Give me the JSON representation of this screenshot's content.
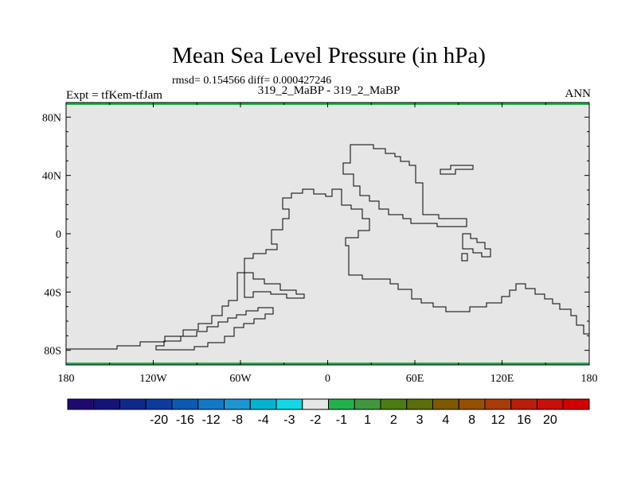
{
  "map": {
    "title": "Mean Sea Level Pressure (in hPa)",
    "stats": "rmsd= 0.154566 diff= 0.000427246",
    "experiment": "Expt = tfKem-tfJam",
    "comparison": "319_2_MaBP - 319_2_MaBP",
    "season": "ANN",
    "fill_color": "#e6e6e6",
    "edge_color": "#22b14c",
    "lat_ticks": [
      {
        "value": 80,
        "label": "80N"
      },
      {
        "value": 40,
        "label": "40N"
      },
      {
        "value": 0,
        "label": "0"
      },
      {
        "value": -40,
        "label": "40S"
      },
      {
        "value": -80,
        "label": "80S"
      }
    ],
    "lon_ticks": [
      {
        "value": -180,
        "label": "180"
      },
      {
        "value": -120,
        "label": "120W"
      },
      {
        "value": -60,
        "label": "60W"
      },
      {
        "value": 0,
        "label": "0"
      },
      {
        "value": 60,
        "label": "60E"
      },
      {
        "value": 120,
        "label": "120E"
      },
      {
        "value": 180,
        "label": "180"
      }
    ],
    "lon_range": [
      -180,
      180
    ],
    "lat_range": [
      -90,
      90
    ]
  },
  "colorbar": {
    "colors": [
      "#1e0a6e",
      "#141478",
      "#0f288c",
      "#0a3ca0",
      "#0a5ab4",
      "#1478c8",
      "#1e96d2",
      "#00b4d2",
      "#14d7e6",
      "#e6e6e6",
      "#22b14c",
      "#419640",
      "#4b7d14",
      "#5a6e0a",
      "#7d5a00",
      "#965000",
      "#aa3c0a",
      "#b91e0a",
      "#c80f0a",
      "#d20000"
    ],
    "labels": [
      "-20",
      "-16",
      "-12",
      "-8",
      "-4",
      "-3",
      "-2",
      "-1",
      "1",
      "2",
      "3",
      "4",
      "8",
      "12",
      "16",
      "20"
    ]
  }
}
